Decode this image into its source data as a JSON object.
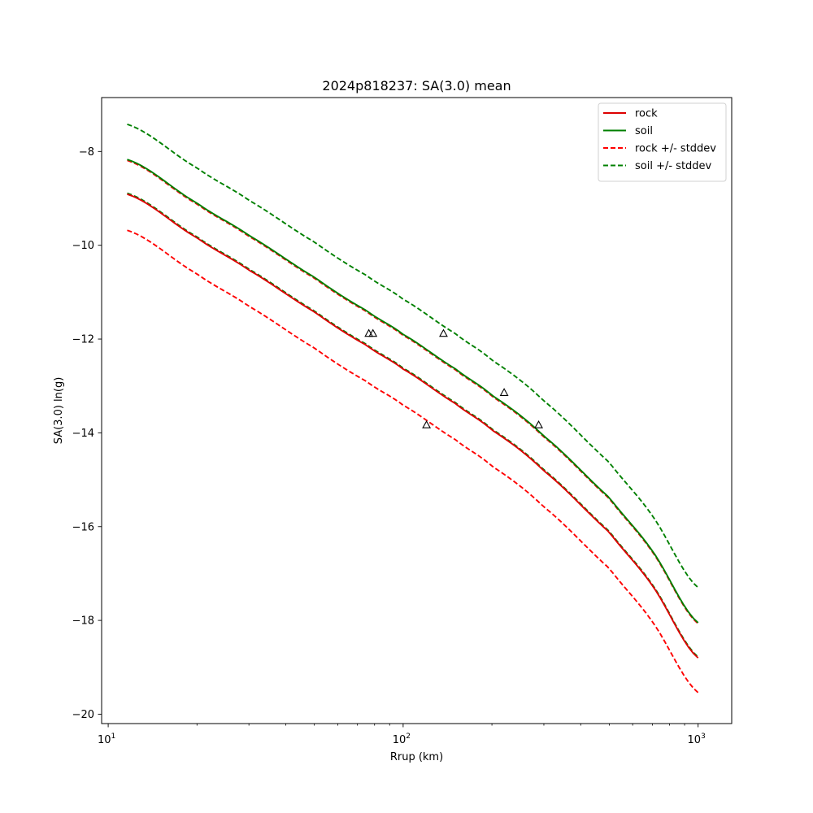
{
  "chart_data": {
    "type": "line",
    "title": "2024p818237: SA(3.0) mean",
    "xlabel": "Rrup (km)",
    "ylabel": "SA(3.0) ln(g)",
    "xscale": "log",
    "xlim": [
      9.5,
      1300
    ],
    "ylim": [
      -20.2,
      -6.85
    ],
    "x_ticks": [
      {
        "value": 10,
        "base": "10",
        "exp": "1"
      },
      {
        "value": 100,
        "base": "10",
        "exp": "2"
      },
      {
        "value": 1000,
        "base": "10",
        "exp": "3"
      }
    ],
    "y_ticks": [
      {
        "value": -8,
        "label": "−8"
      },
      {
        "value": -10,
        "label": "−10"
      },
      {
        "value": -12,
        "label": "−12"
      },
      {
        "value": -14,
        "label": "−14"
      },
      {
        "value": -16,
        "label": "−16"
      },
      {
        "value": -18,
        "label": "−18"
      },
      {
        "value": -20,
        "label": "−20"
      }
    ],
    "grid": false,
    "legend_position": "top-right",
    "x": [
      11.6,
      20,
      30,
      50,
      75,
      100,
      150,
      200,
      300,
      500,
      700,
      1000
    ],
    "series": [
      {
        "name": "rock",
        "style": "solid",
        "color": "#dd0000",
        "values": [
          -8.91,
          -9.84,
          -10.53,
          -11.42,
          -12.13,
          -12.64,
          -13.37,
          -13.94,
          -14.81,
          -16.12,
          -17.26,
          -18.8
        ]
      },
      {
        "name": "soil",
        "style": "solid",
        "color": "#007f00",
        "values": [
          -8.17,
          -9.1,
          -9.79,
          -10.68,
          -11.39,
          -11.9,
          -12.63,
          -13.2,
          -14.07,
          -15.38,
          -16.52,
          -18.05
        ]
      },
      {
        "name": "rock +/- stddev",
        "style": "dashed",
        "color": "#ff0000",
        "values": [
          -9.68,
          -10.61,
          -11.3,
          -12.19,
          -12.9,
          -13.41,
          -14.14,
          -14.71,
          -15.58,
          -16.89,
          -18.03,
          -19.54
        ]
      },
      {
        "name": "",
        "style": "dashed",
        "color": "#ff0000",
        "values": [
          -8.19,
          -9.12,
          -9.81,
          -10.7,
          -11.41,
          -11.92,
          -12.65,
          -13.22,
          -14.09,
          -15.4,
          -16.54,
          -18.07
        ]
      },
      {
        "name": "soil +/- stddev",
        "style": "dashed",
        "color": "#008000",
        "values": [
          -7.42,
          -8.35,
          -9.04,
          -9.93,
          -10.64,
          -11.15,
          -11.88,
          -12.45,
          -13.32,
          -14.63,
          -15.77,
          -17.3
        ]
      },
      {
        "name": "",
        "style": "dashed",
        "color": "#008000",
        "values": [
          -8.89,
          -9.82,
          -10.51,
          -11.4,
          -12.11,
          -12.62,
          -13.35,
          -13.92,
          -14.79,
          -16.1,
          -17.24,
          -18.78
        ]
      }
    ],
    "observations": [
      {
        "x": 76.5,
        "y": -11.88
      },
      {
        "x": 79,
        "y": -11.88
      },
      {
        "x": 120,
        "y": -13.83
      },
      {
        "x": 137,
        "y": -11.88
      },
      {
        "x": 220,
        "y": -13.14
      },
      {
        "x": 288,
        "y": -13.83
      }
    ]
  }
}
